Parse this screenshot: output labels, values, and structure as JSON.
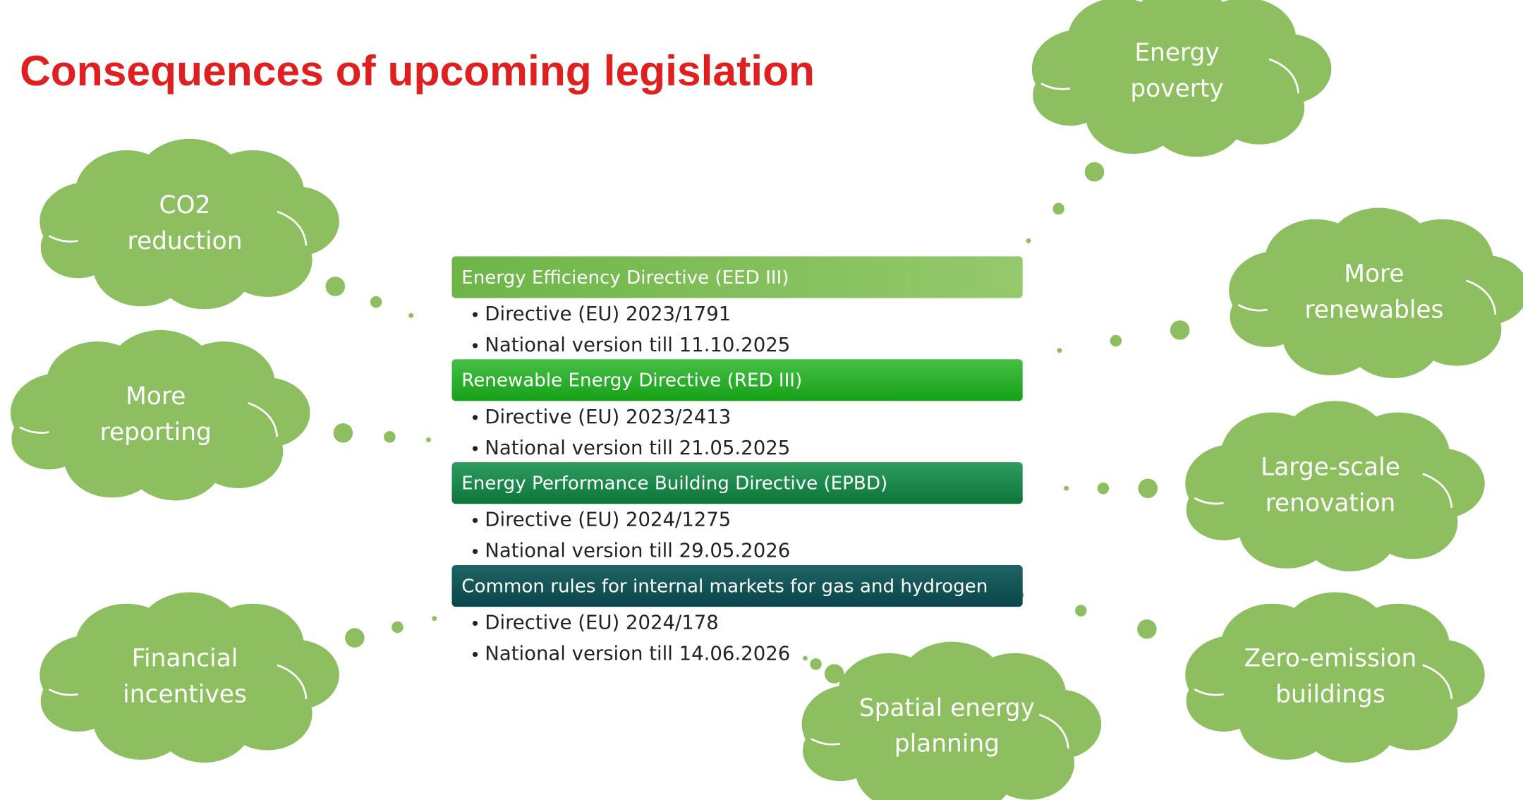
{
  "title": "Consequences of upcoming legislation",
  "directives": [
    {
      "title": "Energy Efficiency Directive (EED III)",
      "bullets": [
        "Directive (EU) 2023/1791",
        "National version till 11.10.2025"
      ]
    },
    {
      "title": "Renewable Energy Directive (RED III)",
      "bullets": [
        "Directive (EU) 2023/2413",
        "National version till 21.05.2025"
      ]
    },
    {
      "title": "Energy Performance Building Directive (EPBD)",
      "bullets": [
        "Directive (EU) 2024/1275",
        "National version till 29.05.2026"
      ]
    },
    {
      "title": "Common rules for internal markets for gas and hydrogen",
      "bullets": [
        "Directive (EU) 2024/178",
        "National version till 14.06.2026"
      ]
    }
  ],
  "clouds": [
    {
      "lines": [
        "Energy",
        "poverty"
      ]
    },
    {
      "lines": [
        "CO2",
        "reduction"
      ]
    },
    {
      "lines": [
        "More",
        "reporting"
      ]
    },
    {
      "lines": [
        "Financial",
        "incentives"
      ]
    },
    {
      "lines": [
        "More",
        "renewables"
      ]
    },
    {
      "lines": [
        "Large-scale",
        "renovation"
      ]
    },
    {
      "lines": [
        "Zero-emission",
        "buildings"
      ]
    },
    {
      "lines": [
        "Spatial energy",
        "planning"
      ]
    }
  ]
}
